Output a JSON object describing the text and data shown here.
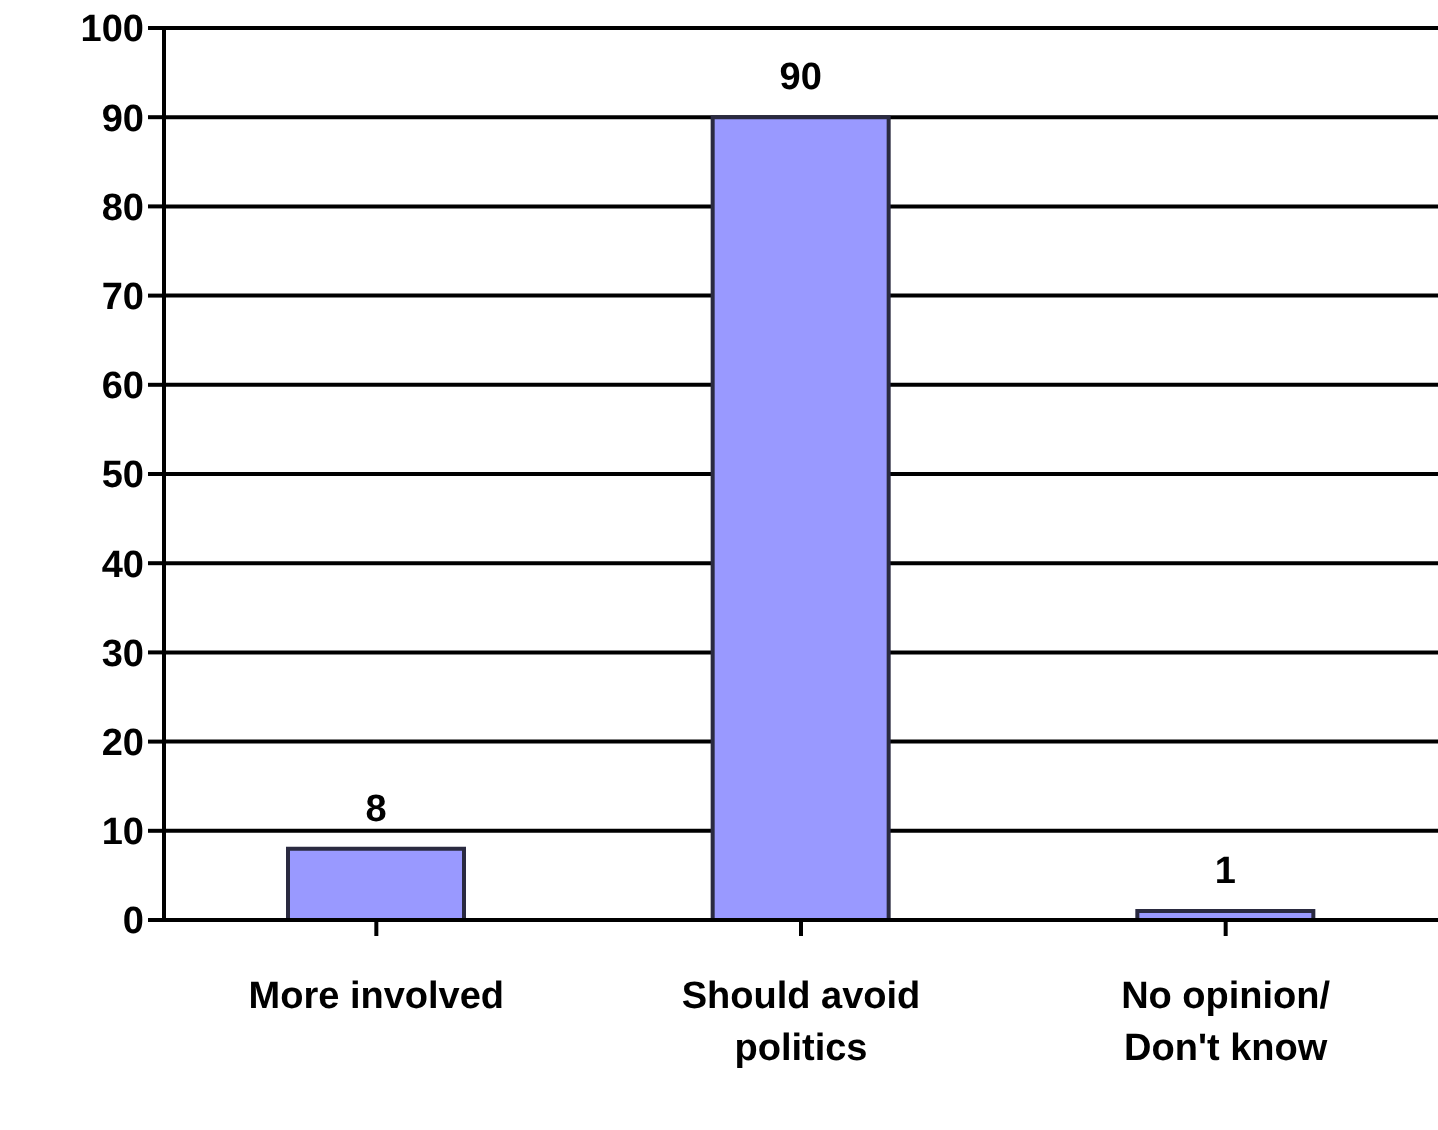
{
  "chart_data": {
    "type": "bar",
    "categories": [
      "More involved",
      "Should avoid politics",
      "No opinion/ Don't know"
    ],
    "values": [
      8,
      90,
      1
    ],
    "color": "#9999ff",
    "ylim": [
      0,
      100
    ],
    "yticks": [
      0,
      10,
      20,
      30,
      40,
      50,
      60,
      70,
      80,
      90,
      100
    ],
    "grid": "y",
    "data_labels": true
  }
}
